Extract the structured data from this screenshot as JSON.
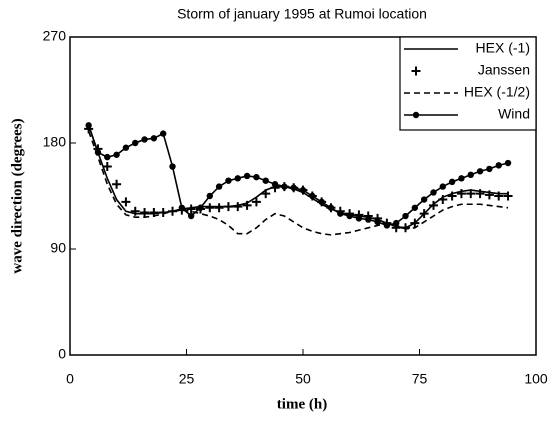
{
  "chart_data": {
    "type": "line",
    "title": "Storm of january 1995 at Rumoi location",
    "xlabel": "time (h)",
    "ylabel": "wave direction (degrees)",
    "x": [
      4,
      6,
      8,
      10,
      12,
      14,
      16,
      18,
      20,
      22,
      24,
      26,
      28,
      30,
      32,
      34,
      36,
      38,
      40,
      42,
      44,
      46,
      48,
      50,
      52,
      54,
      56,
      58,
      60,
      62,
      64,
      66,
      68,
      70,
      72,
      74,
      76,
      78,
      80,
      82,
      84,
      86,
      88,
      90,
      92,
      94
    ],
    "series": [
      {
        "name": "HEX (-1)",
        "color": "#000000",
        "line_style": "solid",
        "values": [
          195,
          172,
          150,
          132,
          122,
          120,
          120,
          120,
          121,
          122,
          124,
          125,
          126,
          126,
          126,
          126,
          127,
          129,
          134,
          140,
          143,
          143,
          141,
          138,
          133,
          128,
          124,
          121,
          119,
          118,
          117,
          115,
          112,
          109,
          108,
          112,
          120,
          128,
          134,
          137,
          139,
          140,
          139,
          138,
          137,
          137
        ]
      },
      {
        "name": "Janssen",
        "color": "#000000",
        "line_style": "none",
        "marker": "plus",
        "values": [
          192,
          175,
          160,
          145,
          130,
          122,
          121,
          121,
          121,
          122,
          123,
          124,
          124,
          125,
          125,
          126,
          126,
          127,
          130,
          137,
          142,
          143,
          142,
          140,
          135,
          130,
          125,
          122,
          120,
          119,
          118,
          116,
          112,
          108,
          108,
          112,
          120,
          127,
          132,
          135,
          137,
          137,
          137,
          136,
          135,
          135
        ]
      },
      {
        "name": "HEX (-1/2)",
        "color": "#000000",
        "line_style": "dashed",
        "values": [
          190,
          168,
          145,
          128,
          119,
          117,
          117,
          118,
          120,
          122,
          123,
          122,
          120,
          118,
          115,
          110,
          103,
          103,
          108,
          115,
          120,
          118,
          113,
          108,
          105,
          103,
          102,
          103,
          104,
          106,
          108,
          110,
          112,
          110,
          107,
          108,
          113,
          118,
          123,
          126,
          128,
          128,
          128,
          127,
          126,
          125
        ]
      },
      {
        "name": "Wind",
        "color": "#000000",
        "line_style": "solid",
        "marker": "circle",
        "values": [
          195,
          172,
          168,
          170,
          176,
          180,
          183,
          184,
          188,
          160,
          125,
          118,
          125,
          135,
          143,
          148,
          150,
          152,
          151,
          148,
          145,
          143,
          142,
          140,
          135,
          130,
          125,
          120,
          118,
          116,
          115,
          113,
          110,
          112,
          118,
          125,
          132,
          138,
          143,
          147,
          150,
          153,
          156,
          158,
          161,
          163
        ]
      }
    ],
    "xlim": [
      0,
      100
    ],
    "xticks": [
      0,
      25,
      50,
      75,
      100
    ],
    "ylim": [
      0,
      270
    ],
    "yticks": [
      0,
      90,
      180,
      270
    ],
    "legend": "upper right"
  }
}
